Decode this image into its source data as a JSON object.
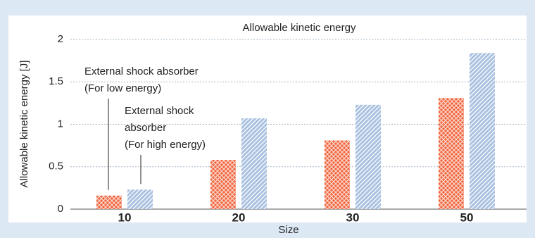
{
  "chart_data": {
    "type": "bar",
    "title": "Allowable kinetic energy",
    "x_label": "Size",
    "y_label": "Allowable kinetic energy [J]",
    "categories": [
      "10",
      "20",
      "30",
      "50"
    ],
    "series": [
      {
        "name": [
          "External shock absorber",
          "(For low energy)"
        ],
        "color": "#f0643c",
        "pattern": "crosshatch",
        "values": [
          0.16,
          0.58,
          0.81,
          1.31
        ]
      },
      {
        "name": [
          "External shock",
          "absorber",
          "(For high energy)"
        ],
        "color": "#a9c1e0",
        "pattern": "diagonal",
        "values": [
          0.23,
          1.07,
          1.23,
          1.84
        ]
      }
    ],
    "ylim": [
      0,
      2
    ],
    "yticks": [
      0,
      0.5,
      1,
      1.5,
      2
    ],
    "grid": true
  }
}
